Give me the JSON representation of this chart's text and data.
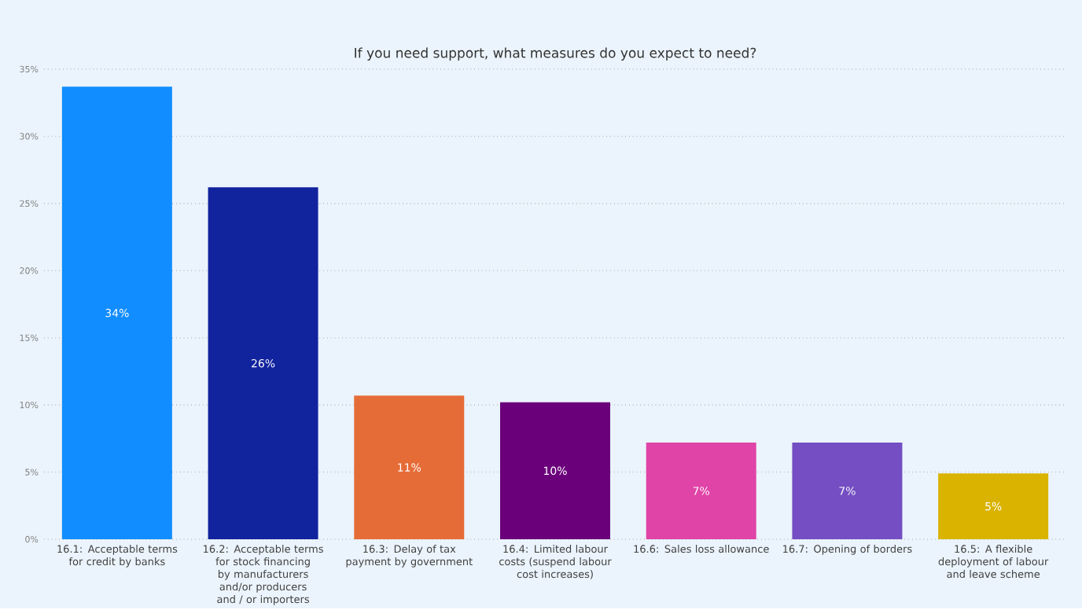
{
  "chart_data": {
    "type": "bar",
    "title": "If you need support, what measures do you expect to need?",
    "categories": [
      "16.1: Acceptable terms for credit by banks",
      "16.2: Acceptable terms for stock financing by manufacturers and/or producers and / or importers",
      "16.3: Delay of tax payment by government",
      "16.4: Limited labour costs (suspend labour cost increases)",
      "16.6: Sales loss allowance",
      "16.7: Opening of borders",
      "16.5: A flexible deployment of labour and leave scheme"
    ],
    "values": [
      33.7,
      26.2,
      10.7,
      10.2,
      7.2,
      7.2,
      4.9
    ],
    "colors": [
      "#118dff",
      "#12239e",
      "#e66c37",
      "#6b007b",
      "#e044a7",
      "#744ec2",
      "#d9b300"
    ],
    "value_labels": [
      "34%",
      "26%",
      "11%",
      "10%",
      "7%",
      "7%",
      "5%"
    ],
    "ylim": [
      0,
      35
    ],
    "yticks": [
      {
        "value": 0,
        "label": "0%"
      },
      {
        "value": 5,
        "label": "5%"
      },
      {
        "value": 10,
        "label": "10%"
      },
      {
        "value": 15,
        "label": "15%"
      },
      {
        "value": 20,
        "label": "20%"
      },
      {
        "value": 25,
        "label": "25%"
      },
      {
        "value": 30,
        "label": "30%"
      },
      {
        "value": 35,
        "label": "35%"
      }
    ],
    "grid": "y"
  }
}
